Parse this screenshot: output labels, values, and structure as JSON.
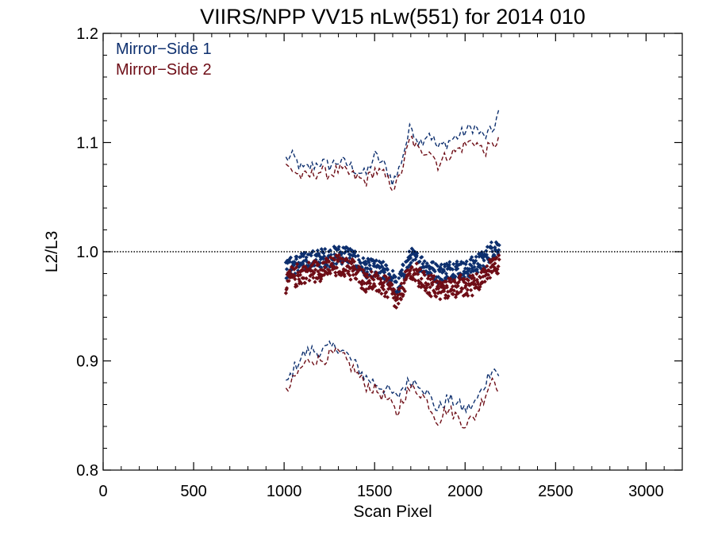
{
  "chart_data": {
    "type": "scatter",
    "title": "VIIRS/NPP VV15 nLw(551) for 2014 010",
    "xlabel": "Scan Pixel",
    "ylabel": "L2/L3",
    "xlim": [
      0,
      3200
    ],
    "ylim": [
      0.8,
      1.2
    ],
    "xticks": [
      0,
      500,
      1000,
      1500,
      2000,
      2500,
      3000
    ],
    "xtick_labels": [
      "0",
      "500",
      "1000",
      "1500",
      "2000",
      "2500",
      "3000"
    ],
    "yticks": [
      0.8,
      0.9,
      1.0,
      1.1,
      1.2
    ],
    "ytick_labels": [
      "0.8",
      "0.9",
      "1.0",
      "1.1",
      "1.2"
    ],
    "reference_line": 1.0,
    "legend_position": "top-left",
    "series": [
      {
        "name": "Mirror−Side 1",
        "color": "#0d2f6e",
        "x": [
          1010,
          1050,
          1100,
          1150,
          1200,
          1250,
          1300,
          1350,
          1400,
          1450,
          1500,
          1550,
          1600,
          1625,
          1650,
          1700,
          1750,
          1800,
          1850,
          1900,
          1950,
          2000,
          2050,
          2100,
          2150,
          2190
        ],
        "y": [
          0.983,
          0.988,
          0.99,
          0.992,
          0.994,
          0.995,
          0.997,
          0.998,
          0.99,
          0.985,
          0.984,
          0.982,
          0.975,
          0.965,
          0.978,
          0.995,
          0.99,
          0.985,
          0.98,
          0.983,
          0.985,
          0.982,
          0.988,
          0.992,
          1.002,
          1.006
        ],
        "upper_y": [
          1.085,
          1.087,
          1.075,
          1.078,
          1.082,
          1.079,
          1.083,
          1.08,
          1.075,
          1.07,
          1.088,
          1.08,
          1.065,
          1.07,
          1.085,
          1.115,
          1.1,
          1.11,
          1.095,
          1.1,
          1.105,
          1.11,
          1.115,
          1.105,
          1.11,
          1.13
        ],
        "lower_y": [
          0.878,
          0.892,
          0.905,
          0.91,
          0.908,
          0.912,
          0.913,
          0.905,
          0.895,
          0.885,
          0.88,
          0.875,
          0.87,
          0.865,
          0.875,
          0.882,
          0.88,
          0.868,
          0.855,
          0.865,
          0.862,
          0.855,
          0.86,
          0.875,
          0.895,
          0.887
        ]
      },
      {
        "name": "Mirror−Side 2",
        "color": "#6e0d16",
        "x": [
          1010,
          1050,
          1100,
          1150,
          1200,
          1250,
          1300,
          1350,
          1400,
          1450,
          1500,
          1550,
          1600,
          1625,
          1650,
          1700,
          1750,
          1800,
          1850,
          1900,
          1950,
          2000,
          2050,
          2100,
          2150,
          2190
        ],
        "y": [
          0.975,
          0.98,
          0.983,
          0.985,
          0.987,
          0.988,
          0.99,
          0.99,
          0.983,
          0.977,
          0.975,
          0.972,
          0.965,
          0.955,
          0.968,
          0.985,
          0.978,
          0.973,
          0.968,
          0.97,
          0.972,
          0.97,
          0.975,
          0.98,
          0.99,
          0.993
        ],
        "upper_y": [
          1.078,
          1.075,
          1.068,
          1.07,
          1.074,
          1.071,
          1.075,
          1.072,
          1.068,
          1.064,
          1.075,
          1.07,
          1.06,
          1.062,
          1.075,
          1.105,
          1.09,
          1.095,
          1.08,
          1.088,
          1.092,
          1.098,
          1.102,
          1.092,
          1.096,
          1.105
        ],
        "lower_y": [
          0.87,
          0.882,
          0.895,
          0.902,
          0.9,
          0.905,
          0.907,
          0.899,
          0.889,
          0.878,
          0.874,
          0.868,
          0.858,
          0.85,
          0.865,
          0.875,
          0.872,
          0.86,
          0.845,
          0.856,
          0.85,
          0.842,
          0.848,
          0.865,
          0.885,
          0.875
        ]
      }
    ]
  }
}
